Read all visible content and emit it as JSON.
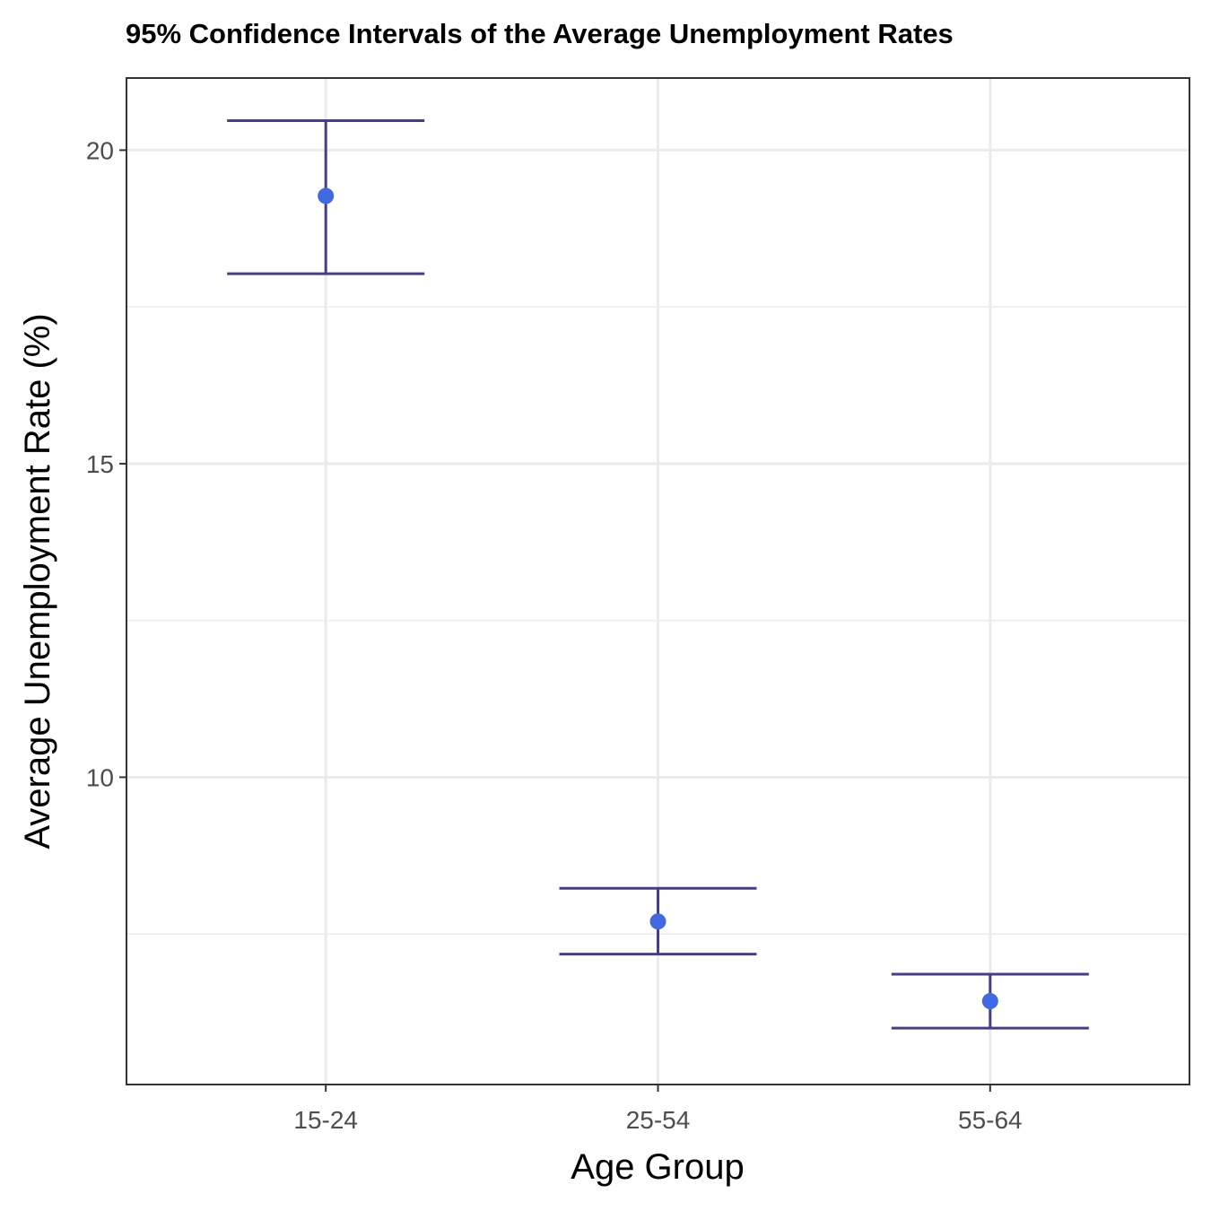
{
  "chart_data": {
    "type": "errorbar",
    "title": "95% Confidence Intervals of the Average Unemployment Rates",
    "xlabel": "Age Group",
    "ylabel": "Average Unemployment Rate (%)",
    "categories": [
      "15-24",
      "25-54",
      "55-64"
    ],
    "mean": [
      19.27,
      7.7,
      6.43
    ],
    "lower": [
      18.03,
      7.18,
      6.0
    ],
    "upper": [
      20.47,
      8.23,
      6.86
    ],
    "ylim": [
      5.1,
      21.15
    ],
    "yticks": [
      10,
      15,
      20
    ],
    "ytick_labels": [
      "10",
      "15",
      "20"
    ],
    "grid": true,
    "colors": {
      "point": "#4169e1",
      "errorbar": "#483d8b",
      "grid": "#ebebeb",
      "border": "#333333"
    }
  }
}
